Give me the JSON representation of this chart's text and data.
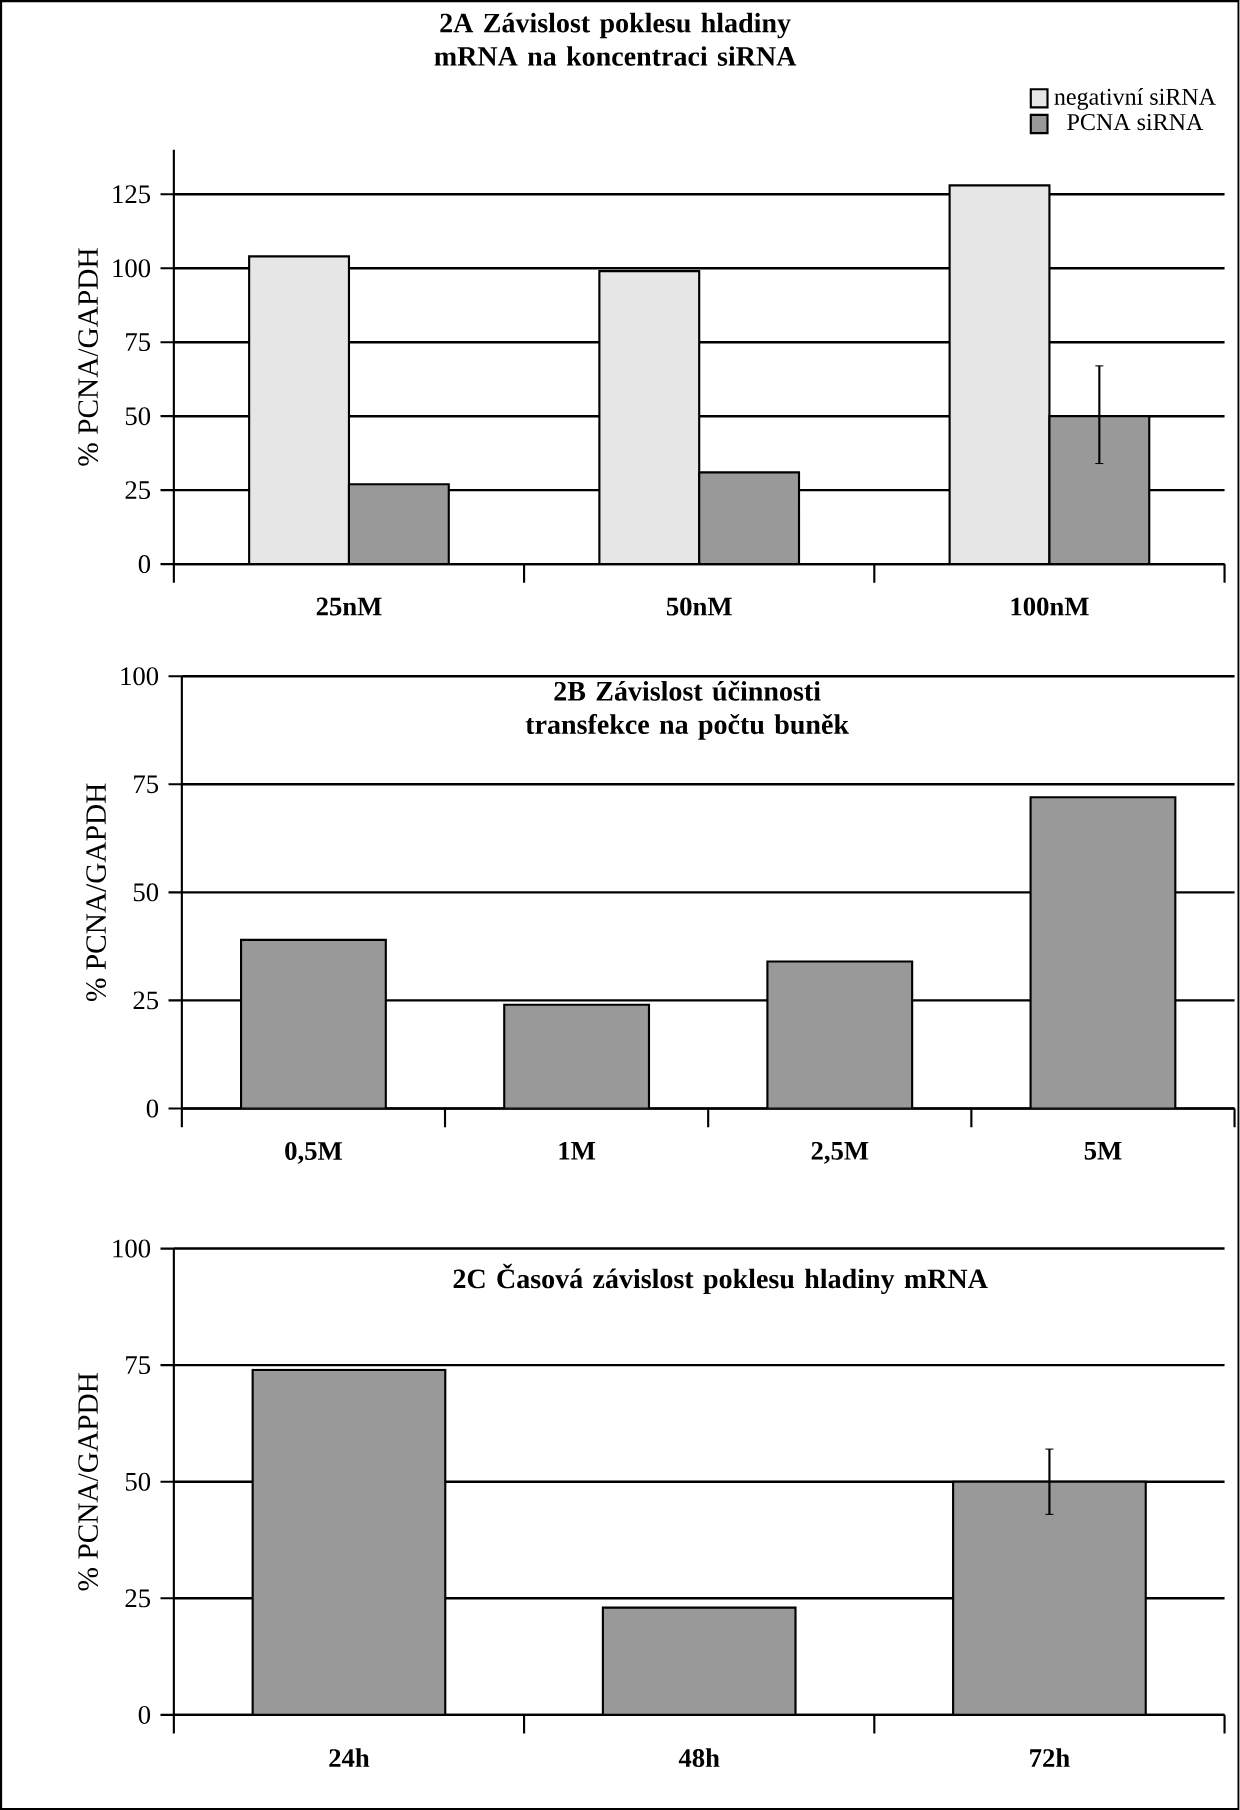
{
  "chart_data": [
    {
      "type": "bar",
      "title": "2A Závislost poklesu hladiny mRNA na koncentraci siRNA",
      "ylabel": "% PCNA/GAPDH",
      "categories": [
        "25nM",
        "50nM",
        "100nM"
      ],
      "series": [
        {
          "name": "negativní siRNA",
          "color": "#e6e6e6",
          "values": [
            104,
            99,
            128
          ]
        },
        {
          "name": "PCNA siRNA",
          "color": "#999999",
          "values": [
            27,
            31,
            50
          ],
          "errors": [
            null,
            null,
            [
              34,
              67
            ]
          ]
        }
      ],
      "ylim": [
        0,
        140
      ],
      "yticks": [
        0,
        25,
        50,
        75,
        100,
        125
      ],
      "grid": "y",
      "legend": "top right"
    },
    {
      "type": "bar",
      "title": "2B Závislost účinnosti transfekce na počtu buněk",
      "ylabel": "% PCNA/GAPDH",
      "categories": [
        "0,5M",
        "1M",
        "2,5M",
        "5M"
      ],
      "series": [
        {
          "color": "#999999",
          "values": [
            39,
            24,
            34,
            72
          ]
        }
      ],
      "ylim": [
        0,
        100
      ],
      "yticks": [
        0,
        25,
        50,
        75,
        100
      ],
      "grid": "y"
    },
    {
      "type": "bar",
      "title": "2C Časová závislost poklesu hladiny mRNA",
      "ylabel": "% PCNA/GAPDH",
      "categories": [
        "24h",
        "48h",
        "72h"
      ],
      "series": [
        {
          "color": "#999999",
          "values": [
            74,
            23,
            50
          ],
          "errors": [
            null,
            null,
            [
              43,
              57
            ]
          ]
        }
      ],
      "ylim": [
        0,
        100
      ],
      "yticks": [
        0,
        25,
        50,
        75,
        100
      ],
      "grid": "y"
    }
  ]
}
